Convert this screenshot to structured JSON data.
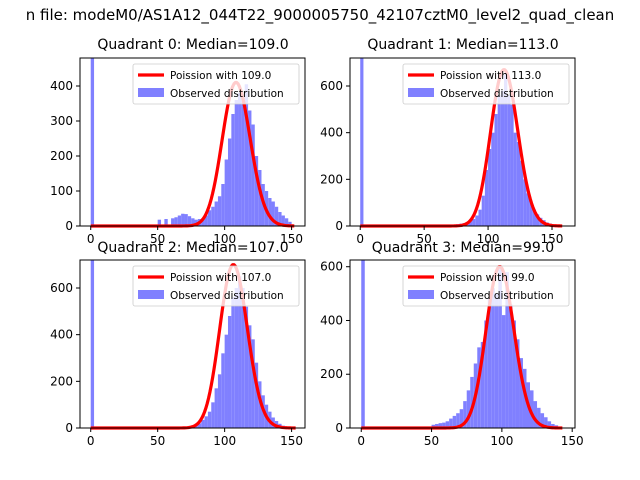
{
  "figure": {
    "suptitle": "n file: modeM0/AS1A12_044T22_9000005750_42107cztM0_level2_quad_clean"
  },
  "colors": {
    "fit_line": "#ff0000",
    "histogram": "#8080ff",
    "axes": "#000000"
  },
  "chart_data": [
    {
      "type": "bar",
      "title": "Quadrant 0: Median=109.0",
      "xlabel": "",
      "ylabel": "",
      "xlim": [
        -8,
        160
      ],
      "ylim": [
        0,
        480
      ],
      "xticks": [
        0,
        50,
        100,
        150
      ],
      "yticks": [
        0,
        100,
        200,
        300,
        400
      ],
      "grid": false,
      "legend_position": "top-right",
      "legend": [
        "Poission with 109.0",
        "Observed distribution"
      ],
      "fit": {
        "label": "Poission with 109.0",
        "mean": 109.0,
        "peak": 410,
        "xmax": 152
      },
      "hist": {
        "name": "Observed distribution",
        "bin_width": 2.5,
        "bins": [
          [
            0,
            480
          ],
          [
            50,
            18
          ],
          [
            55,
            20
          ],
          [
            60,
            22
          ],
          [
            62.5,
            25
          ],
          [
            65,
            30
          ],
          [
            67.5,
            35
          ],
          [
            70,
            34
          ],
          [
            72.5,
            28
          ],
          [
            75,
            22
          ],
          [
            77.5,
            18
          ],
          [
            80,
            20
          ],
          [
            82.5,
            22
          ],
          [
            85,
            30
          ],
          [
            87.5,
            45
          ],
          [
            90,
            55
          ],
          [
            92.5,
            70
          ],
          [
            95,
            85
          ],
          [
            97.5,
            120
          ],
          [
            100,
            190
          ],
          [
            102.5,
            250
          ],
          [
            105,
            320
          ],
          [
            107.5,
            360
          ],
          [
            110,
            380
          ],
          [
            112.5,
            370
          ],
          [
            115,
            405
          ],
          [
            117.5,
            330
          ],
          [
            120,
            290
          ],
          [
            122.5,
            200
          ],
          [
            125,
            160
          ],
          [
            127.5,
            120
          ],
          [
            130,
            100
          ],
          [
            132.5,
            80
          ],
          [
            135,
            70
          ],
          [
            137.5,
            55
          ],
          [
            140,
            40
          ],
          [
            142.5,
            30
          ],
          [
            145,
            22
          ],
          [
            147.5,
            12
          ]
        ]
      }
    },
    {
      "type": "bar",
      "title": "Quadrant 1: Median=113.0",
      "xlabel": "",
      "ylabel": "",
      "xlim": [
        -8,
        168
      ],
      "ylim": [
        0,
        720
      ],
      "xticks": [
        0,
        50,
        100,
        150
      ],
      "yticks": [
        0,
        200,
        400,
        600
      ],
      "grid": false,
      "legend_position": "top-right",
      "legend": [
        "Poission with 113.0",
        "Observed distribution"
      ],
      "fit": {
        "label": "Poission with 113.0",
        "mean": 113.0,
        "peak": 670,
        "xmax": 158
      },
      "hist": {
        "name": "Observed distribution",
        "bin_width": 2.5,
        "bins": [
          [
            0,
            720
          ],
          [
            75,
            8
          ],
          [
            77.5,
            10
          ],
          [
            80,
            12
          ],
          [
            82.5,
            15
          ],
          [
            85,
            20
          ],
          [
            87.5,
            30
          ],
          [
            90,
            45
          ],
          [
            92.5,
            70
          ],
          [
            95,
            130
          ],
          [
            97.5,
            240
          ],
          [
            100,
            330
          ],
          [
            102.5,
            400
          ],
          [
            105,
            480
          ],
          [
            107.5,
            560
          ],
          [
            110,
            580
          ],
          [
            112.5,
            650
          ],
          [
            115,
            560
          ],
          [
            117.5,
            520
          ],
          [
            120,
            400
          ],
          [
            122.5,
            360
          ],
          [
            125,
            280
          ],
          [
            127.5,
            200
          ],
          [
            130,
            140
          ],
          [
            132.5,
            100
          ],
          [
            135,
            70
          ],
          [
            137.5,
            50
          ],
          [
            140,
            35
          ],
          [
            142.5,
            25
          ],
          [
            145,
            15
          ],
          [
            147.5,
            10
          ],
          [
            150,
            6
          ]
        ]
      }
    },
    {
      "type": "bar",
      "title": "Quadrant 2: Median=107.0",
      "xlabel": "",
      "ylabel": "",
      "xlim": [
        -8,
        160
      ],
      "ylim": [
        0,
        720
      ],
      "xticks": [
        0,
        50,
        100,
        150
      ],
      "yticks": [
        0,
        200,
        400,
        600
      ],
      "grid": false,
      "legend_position": "top-right",
      "legend": [
        "Poission with 107.0",
        "Observed distribution"
      ],
      "fit": {
        "label": "Poission with 107.0",
        "mean": 107.0,
        "peak": 700,
        "xmax": 153
      },
      "hist": {
        "name": "Observed distribution",
        "bin_width": 2.5,
        "bins": [
          [
            0,
            720
          ],
          [
            75,
            8
          ],
          [
            77.5,
            12
          ],
          [
            80,
            20
          ],
          [
            82.5,
            35
          ],
          [
            85,
            50
          ],
          [
            87.5,
            70
          ],
          [
            90,
            110
          ],
          [
            92.5,
            170
          ],
          [
            95,
            230
          ],
          [
            97.5,
            320
          ],
          [
            100,
            400
          ],
          [
            102.5,
            480
          ],
          [
            105,
            560
          ],
          [
            107.5,
            600
          ],
          [
            110,
            650
          ],
          [
            112.5,
            600
          ],
          [
            115,
            520
          ],
          [
            117.5,
            440
          ],
          [
            120,
            380
          ],
          [
            122.5,
            280
          ],
          [
            125,
            200
          ],
          [
            127.5,
            140
          ],
          [
            130,
            100
          ],
          [
            132.5,
            70
          ],
          [
            135,
            45
          ],
          [
            137.5,
            30
          ],
          [
            140,
            18
          ],
          [
            142.5,
            10
          ],
          [
            145,
            6
          ]
        ]
      }
    },
    {
      "type": "bar",
      "title": "Quadrant 3: Median=99.0",
      "xlabel": "",
      "ylabel": "",
      "xlim": [
        -8,
        152
      ],
      "ylim": [
        0,
        625
      ],
      "xticks": [
        0,
        50,
        100,
        150
      ],
      "yticks": [
        0,
        200,
        400,
        600
      ],
      "grid": false,
      "legend_position": "top-right",
      "legend": [
        "Poission with 99.0",
        "Observed distribution"
      ],
      "fit": {
        "label": "Poission with 99.0",
        "mean": 99.0,
        "peak": 600,
        "xmax": 143
      },
      "hist": {
        "name": "Observed distribution",
        "bin_width": 2.5,
        "bins": [
          [
            0,
            625
          ],
          [
            50,
            12
          ],
          [
            52.5,
            15
          ],
          [
            55,
            18
          ],
          [
            57.5,
            20
          ],
          [
            60,
            25
          ],
          [
            62.5,
            35
          ],
          [
            65,
            45
          ],
          [
            67.5,
            55
          ],
          [
            70,
            70
          ],
          [
            72.5,
            100
          ],
          [
            75,
            140
          ],
          [
            77.5,
            190
          ],
          [
            80,
            240
          ],
          [
            82.5,
            300
          ],
          [
            85,
            320
          ],
          [
            87.5,
            400
          ],
          [
            90,
            480
          ],
          [
            92.5,
            520
          ],
          [
            95,
            500
          ],
          [
            97.5,
            600
          ],
          [
            100,
            420
          ],
          [
            102.5,
            580
          ],
          [
            105,
            460
          ],
          [
            107.5,
            400
          ],
          [
            110,
            330
          ],
          [
            112.5,
            260
          ],
          [
            115,
            220
          ],
          [
            117.5,
            170
          ],
          [
            120,
            140
          ],
          [
            122.5,
            100
          ],
          [
            125,
            75
          ],
          [
            127.5,
            55
          ],
          [
            130,
            40
          ],
          [
            132.5,
            25
          ],
          [
            135,
            15
          ],
          [
            137.5,
            10
          ]
        ]
      }
    }
  ]
}
